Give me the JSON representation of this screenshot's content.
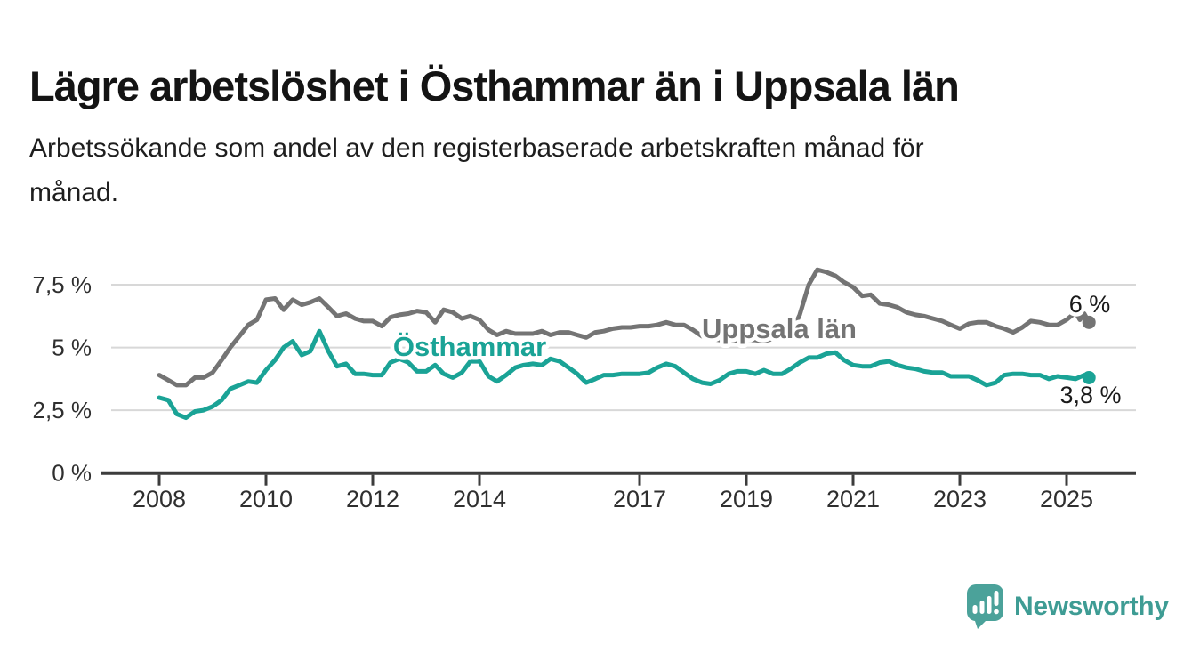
{
  "header": {
    "title": "Lägre arbetslöshet i Östhammar än i Uppsala län",
    "subtitle_lines": [
      "Arbetssökande som andel av den registerbaserade arbetskraften månad för",
      "månad."
    ]
  },
  "footer": {
    "brand": "Newsworthy",
    "logo_icon": "bar-chart-speech-bubble-icon",
    "brand_color": "#3e9c94",
    "icon_color": "#4ba29a"
  },
  "chart_data": {
    "type": "line",
    "unit": "%",
    "grid": true,
    "x_axis": {
      "tick_years": [
        2008,
        2010,
        2012,
        2014,
        2017,
        2019,
        2021,
        2023,
        2025
      ],
      "tick_labels": [
        "2008",
        "2010",
        "2012",
        "2014",
        "2017",
        "2019",
        "2021",
        "2023",
        "2025"
      ],
      "range_years": [
        2008,
        2025.42
      ]
    },
    "y_axis": {
      "ticks": [
        {
          "label": "0 %",
          "value": 0
        },
        {
          "label": "2,5 %",
          "value": 2.5
        },
        {
          "label": "5 %",
          "value": 5
        },
        {
          "label": "7,5 %",
          "value": 7.5
        }
      ],
      "range": [
        0,
        8.5
      ]
    },
    "series": [
      {
        "name": "Uppsala län",
        "color": "#747474",
        "end_label": "6 %",
        "end_value": 6.0,
        "points": [
          [
            2008.0,
            3.9
          ],
          [
            2008.17,
            3.7
          ],
          [
            2008.33,
            3.5
          ],
          [
            2008.5,
            3.5
          ],
          [
            2008.67,
            3.8
          ],
          [
            2008.83,
            3.8
          ],
          [
            2009.0,
            4.0
          ],
          [
            2009.17,
            4.5
          ],
          [
            2009.33,
            5.0
          ],
          [
            2009.5,
            5.45
          ],
          [
            2009.67,
            5.9
          ],
          [
            2009.83,
            6.1
          ],
          [
            2010.0,
            6.9
          ],
          [
            2010.17,
            6.95
          ],
          [
            2010.33,
            6.5
          ],
          [
            2010.5,
            6.9
          ],
          [
            2010.67,
            6.7
          ],
          [
            2010.83,
            6.8
          ],
          [
            2011.0,
            6.95
          ],
          [
            2011.17,
            6.6
          ],
          [
            2011.33,
            6.25
          ],
          [
            2011.5,
            6.35
          ],
          [
            2011.67,
            6.15
          ],
          [
            2011.83,
            6.05
          ],
          [
            2012.0,
            6.05
          ],
          [
            2012.17,
            5.85
          ],
          [
            2012.33,
            6.2
          ],
          [
            2012.5,
            6.3
          ],
          [
            2012.67,
            6.35
          ],
          [
            2012.83,
            6.45
          ],
          [
            2013.0,
            6.4
          ],
          [
            2013.17,
            6.0
          ],
          [
            2013.33,
            6.5
          ],
          [
            2013.5,
            6.4
          ],
          [
            2013.67,
            6.15
          ],
          [
            2013.83,
            6.25
          ],
          [
            2014.0,
            6.1
          ],
          [
            2014.17,
            5.7
          ],
          [
            2014.33,
            5.5
          ],
          [
            2014.5,
            5.65
          ],
          [
            2014.67,
            5.55
          ],
          [
            2014.83,
            5.55
          ],
          [
            2015.0,
            5.55
          ],
          [
            2015.17,
            5.65
          ],
          [
            2015.33,
            5.5
          ],
          [
            2015.5,
            5.6
          ],
          [
            2015.67,
            5.6
          ],
          [
            2015.83,
            5.5
          ],
          [
            2016.0,
            5.4
          ],
          [
            2016.17,
            5.6
          ],
          [
            2016.33,
            5.65
          ],
          [
            2016.5,
            5.75
          ],
          [
            2016.67,
            5.8
          ],
          [
            2016.83,
            5.8
          ],
          [
            2017.0,
            5.85
          ],
          [
            2017.17,
            5.85
          ],
          [
            2017.33,
            5.9
          ],
          [
            2017.5,
            6.0
          ],
          [
            2017.67,
            5.9
          ],
          [
            2017.83,
            5.9
          ],
          [
            2018.0,
            5.7
          ],
          [
            2018.17,
            5.45
          ],
          [
            2018.33,
            5.35
          ],
          [
            2018.5,
            5.3
          ],
          [
            2018.67,
            5.3
          ],
          [
            2018.83,
            5.25
          ],
          [
            2019.0,
            5.3
          ],
          [
            2019.17,
            5.3
          ],
          [
            2019.33,
            5.25
          ],
          [
            2019.5,
            5.35
          ],
          [
            2019.67,
            5.35
          ],
          [
            2019.83,
            5.5
          ],
          [
            2020.0,
            6.3
          ],
          [
            2020.17,
            7.5
          ],
          [
            2020.33,
            8.1
          ],
          [
            2020.5,
            8.0
          ],
          [
            2020.67,
            7.85
          ],
          [
            2020.83,
            7.6
          ],
          [
            2021.0,
            7.4
          ],
          [
            2021.17,
            7.05
          ],
          [
            2021.33,
            7.1
          ],
          [
            2021.5,
            6.75
          ],
          [
            2021.67,
            6.7
          ],
          [
            2021.83,
            6.6
          ],
          [
            2022.0,
            6.4
          ],
          [
            2022.17,
            6.3
          ],
          [
            2022.33,
            6.25
          ],
          [
            2022.5,
            6.15
          ],
          [
            2022.67,
            6.05
          ],
          [
            2022.83,
            5.9
          ],
          [
            2023.0,
            5.75
          ],
          [
            2023.17,
            5.95
          ],
          [
            2023.33,
            6.0
          ],
          [
            2023.5,
            6.0
          ],
          [
            2023.67,
            5.85
          ],
          [
            2023.83,
            5.75
          ],
          [
            2024.0,
            5.6
          ],
          [
            2024.17,
            5.8
          ],
          [
            2024.33,
            6.05
          ],
          [
            2024.5,
            6.0
          ],
          [
            2024.67,
            5.9
          ],
          [
            2024.83,
            5.9
          ],
          [
            2025.0,
            6.1
          ],
          [
            2025.17,
            6.4
          ],
          [
            2025.25,
            6.1
          ],
          [
            2025.33,
            6.35
          ],
          [
            2025.42,
            6.0
          ]
        ]
      },
      {
        "name": "Östhammar",
        "color": "#1aa396",
        "end_label": "3,8 %",
        "end_value": 3.8,
        "points": [
          [
            2008.0,
            3.0
          ],
          [
            2008.17,
            2.9
          ],
          [
            2008.33,
            2.35
          ],
          [
            2008.5,
            2.2
          ],
          [
            2008.67,
            2.45
          ],
          [
            2008.83,
            2.5
          ],
          [
            2009.0,
            2.65
          ],
          [
            2009.17,
            2.9
          ],
          [
            2009.33,
            3.35
          ],
          [
            2009.5,
            3.5
          ],
          [
            2009.67,
            3.65
          ],
          [
            2009.83,
            3.6
          ],
          [
            2010.0,
            4.1
          ],
          [
            2010.17,
            4.5
          ],
          [
            2010.33,
            5.0
          ],
          [
            2010.5,
            5.25
          ],
          [
            2010.67,
            4.7
          ],
          [
            2010.83,
            4.85
          ],
          [
            2011.0,
            5.65
          ],
          [
            2011.17,
            4.85
          ],
          [
            2011.33,
            4.25
          ],
          [
            2011.5,
            4.35
          ],
          [
            2011.67,
            3.95
          ],
          [
            2011.83,
            3.95
          ],
          [
            2012.0,
            3.9
          ],
          [
            2012.17,
            3.9
          ],
          [
            2012.33,
            4.4
          ],
          [
            2012.5,
            4.55
          ],
          [
            2012.67,
            4.4
          ],
          [
            2012.83,
            4.05
          ],
          [
            2013.0,
            4.05
          ],
          [
            2013.17,
            4.3
          ],
          [
            2013.33,
            3.95
          ],
          [
            2013.5,
            3.8
          ],
          [
            2013.67,
            4.0
          ],
          [
            2013.83,
            4.45
          ],
          [
            2014.0,
            4.45
          ],
          [
            2014.17,
            3.85
          ],
          [
            2014.33,
            3.65
          ],
          [
            2014.5,
            3.9
          ],
          [
            2014.67,
            4.2
          ],
          [
            2014.83,
            4.3
          ],
          [
            2015.0,
            4.35
          ],
          [
            2015.17,
            4.3
          ],
          [
            2015.33,
            4.55
          ],
          [
            2015.5,
            4.45
          ],
          [
            2015.67,
            4.2
          ],
          [
            2015.83,
            3.95
          ],
          [
            2016.0,
            3.6
          ],
          [
            2016.17,
            3.75
          ],
          [
            2016.33,
            3.9
          ],
          [
            2016.5,
            3.9
          ],
          [
            2016.67,
            3.95
          ],
          [
            2016.83,
            3.95
          ],
          [
            2017.0,
            3.95
          ],
          [
            2017.17,
            4.0
          ],
          [
            2017.33,
            4.2
          ],
          [
            2017.5,
            4.35
          ],
          [
            2017.67,
            4.25
          ],
          [
            2017.83,
            4.0
          ],
          [
            2018.0,
            3.75
          ],
          [
            2018.17,
            3.6
          ],
          [
            2018.33,
            3.55
          ],
          [
            2018.5,
            3.7
          ],
          [
            2018.67,
            3.95
          ],
          [
            2018.83,
            4.05
          ],
          [
            2019.0,
            4.05
          ],
          [
            2019.17,
            3.95
          ],
          [
            2019.33,
            4.1
          ],
          [
            2019.5,
            3.95
          ],
          [
            2019.67,
            3.95
          ],
          [
            2019.83,
            4.15
          ],
          [
            2020.0,
            4.4
          ],
          [
            2020.17,
            4.6
          ],
          [
            2020.33,
            4.6
          ],
          [
            2020.5,
            4.75
          ],
          [
            2020.67,
            4.8
          ],
          [
            2020.83,
            4.5
          ],
          [
            2021.0,
            4.3
          ],
          [
            2021.17,
            4.25
          ],
          [
            2021.33,
            4.25
          ],
          [
            2021.5,
            4.4
          ],
          [
            2021.67,
            4.45
          ],
          [
            2021.83,
            4.3
          ],
          [
            2022.0,
            4.2
          ],
          [
            2022.17,
            4.15
          ],
          [
            2022.33,
            4.05
          ],
          [
            2022.5,
            4.0
          ],
          [
            2022.67,
            4.0
          ],
          [
            2022.83,
            3.85
          ],
          [
            2023.0,
            3.85
          ],
          [
            2023.17,
            3.85
          ],
          [
            2023.33,
            3.7
          ],
          [
            2023.5,
            3.5
          ],
          [
            2023.67,
            3.6
          ],
          [
            2023.83,
            3.9
          ],
          [
            2024.0,
            3.95
          ],
          [
            2024.17,
            3.95
          ],
          [
            2024.33,
            3.9
          ],
          [
            2024.5,
            3.9
          ],
          [
            2024.67,
            3.75
          ],
          [
            2024.83,
            3.85
          ],
          [
            2025.0,
            3.8
          ],
          [
            2025.17,
            3.75
          ],
          [
            2025.33,
            3.9
          ],
          [
            2025.42,
            3.8
          ]
        ]
      }
    ]
  }
}
